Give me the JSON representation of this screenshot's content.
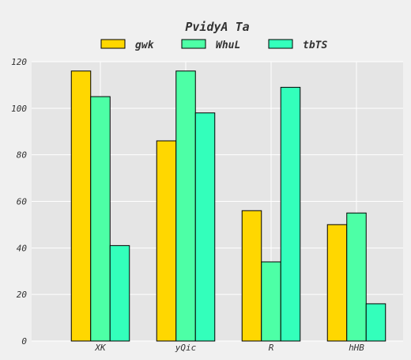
{
  "chart_data": {
    "type": "bar",
    "title": "PvidyA Ta",
    "xlabel": "",
    "ylabel": "",
    "categories": [
      "XK",
      "yQic",
      "R",
      "hHB"
    ],
    "series": [
      {
        "name": "gwk",
        "values": [
          116,
          86,
          56,
          50
        ],
        "color": "#ffd700"
      },
      {
        "name": "WhuL",
        "values": [
          105,
          116,
          34,
          55
        ],
        "color": "#4dffa6"
      },
      {
        "name": "tbTS",
        "values": [
          41,
          98,
          109,
          16
        ],
        "color": "#33ffbb"
      }
    ],
    "ylim": [
      0,
      120
    ],
    "yticks": [
      0,
      20,
      40,
      60,
      80,
      100,
      120
    ],
    "grid": true,
    "legend_position": "top-center",
    "colors": {
      "background": "#f0f0f0",
      "plot_background": "#e5e5e5",
      "grid": "#ffffff",
      "text": "#333333",
      "bar_edge": "#000000"
    }
  }
}
